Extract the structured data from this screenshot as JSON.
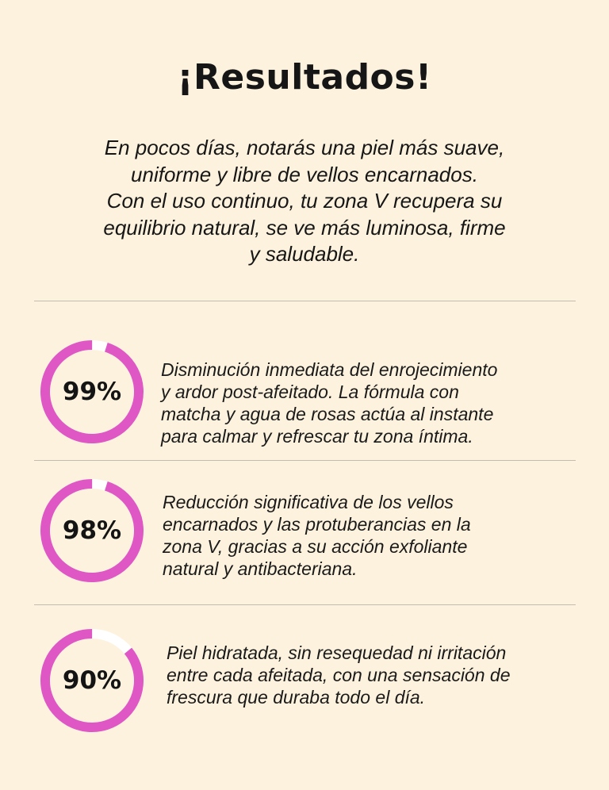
{
  "title": "¡Resultados!",
  "intro_lines": [
    "En pocos días, notarás una piel más suave,",
    "uniforme y libre de vellos encarnados.",
    "Con el uso continuo, tu zona V recupera su",
    "equilibrio natural, se ve más luminosa, firme",
    "y saludable."
  ],
  "colors": {
    "background": "#fdf2dd",
    "ring": "#de57c4",
    "ring_track": "#ffffff"
  },
  "results": [
    {
      "percent_label": "99%",
      "value": 99,
      "lines": [
        "Disminución inmediata del enrojecimiento",
        "y ardor post-afeitado. La fórmula con",
        "matcha y agua de rosas actúa al instante",
        "para calmar y refrescar tu zona íntima."
      ]
    },
    {
      "percent_label": "98%",
      "value": 98,
      "lines": [
        "Reducción significativa de los vellos",
        "encarnados y las protuberancias en la",
        "zona V, gracias a su acción exfoliante",
        "natural y antibacteriana."
      ]
    },
    {
      "percent_label": "90%",
      "value": 90,
      "lines": [
        "Piel hidratada, sin resequedad ni irritación",
        "entre cada afeitada, con una sensación de",
        "frescura que duraba todo el día."
      ]
    }
  ]
}
